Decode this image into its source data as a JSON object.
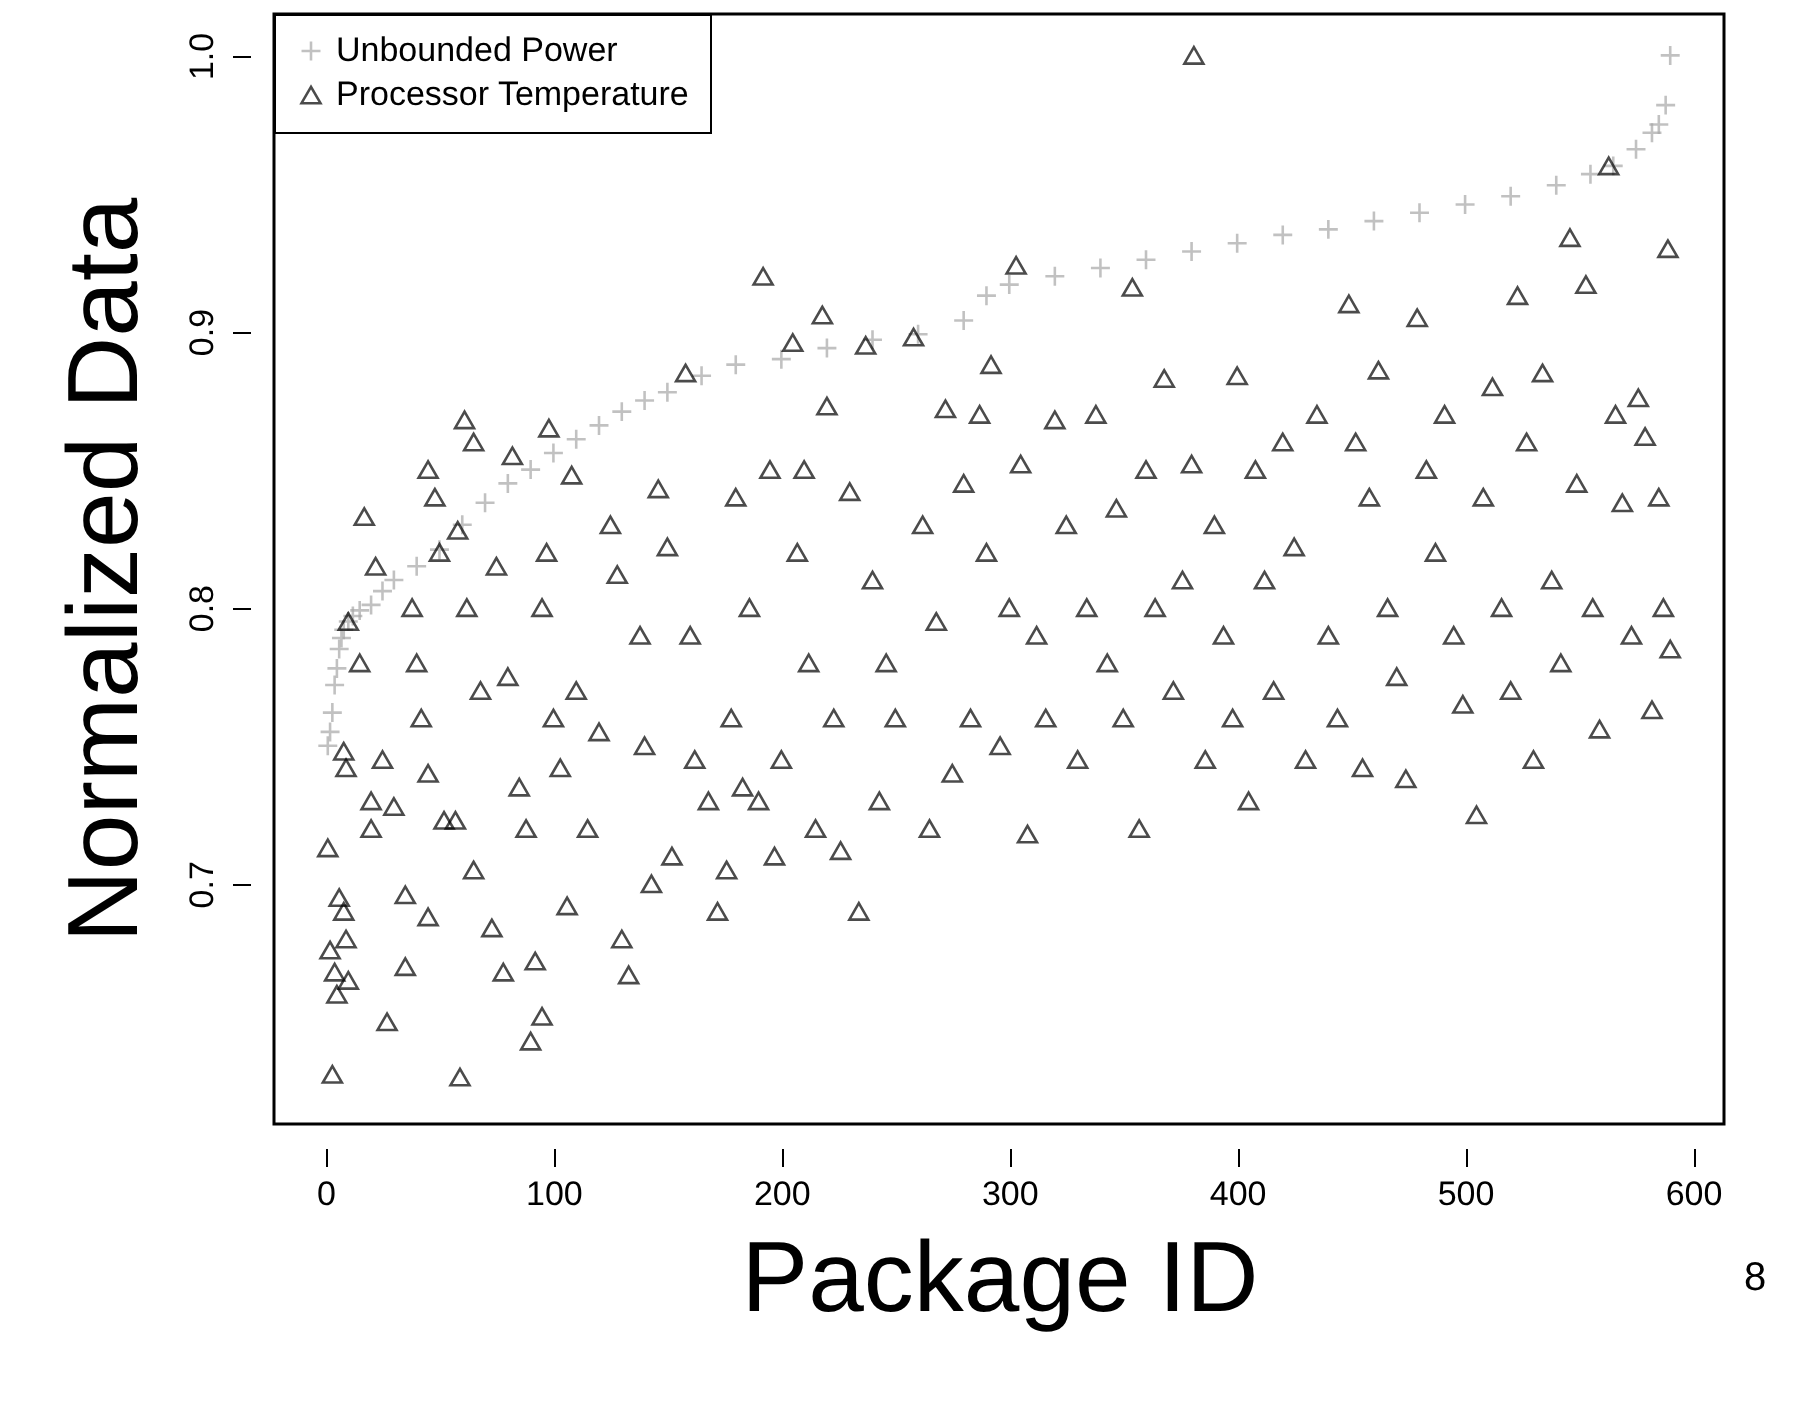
{
  "chart_data": {
    "type": "scatter",
    "xlabel": "Package ID",
    "ylabel": "Normalized Data",
    "xlim": [
      -22.6,
      613.6
    ],
    "ylim": [
      0.613,
      1.015
    ],
    "xticks": [
      0,
      100,
      200,
      300,
      400,
      500,
      600
    ],
    "yticks": [
      0.7,
      0.8,
      0.9,
      {
        "value": 1,
        "label": "1.0"
      }
    ],
    "grid": false,
    "legend": "top left",
    "annotations": [
      "8"
    ],
    "series": [
      {
        "name": "Unbounded Power",
        "color": "#a8a8a8",
        "marker": "cross",
        "x": [
          1,
          2,
          3,
          4,
          5,
          6,
          7,
          8,
          10,
          12,
          15,
          20,
          25,
          30,
          40,
          50,
          60,
          70,
          80,
          90,
          100,
          110,
          120,
          130,
          140,
          150,
          165,
          180,
          200,
          220,
          240,
          260,
          280,
          290,
          300,
          320,
          340,
          360,
          380,
          400,
          420,
          440,
          460,
          480,
          500,
          520,
          540,
          555,
          565,
          575,
          582,
          585,
          588,
          590
        ],
        "values": [
          0.75,
          0.755,
          0.762,
          0.772,
          0.778,
          0.785,
          0.789,
          0.792,
          0.795,
          0.797,
          0.799,
          0.801,
          0.806,
          0.81,
          0.815,
          0.821,
          0.83,
          0.838,
          0.845,
          0.85,
          0.856,
          0.861,
          0.866,
          0.871,
          0.875,
          0.878,
          0.884,
          0.888,
          0.89,
          0.894,
          0.897,
          0.899,
          0.904,
          0.913,
          0.917,
          0.92,
          0.923,
          0.926,
          0.929,
          0.932,
          0.935,
          0.937,
          0.94,
          0.943,
          0.946,
          0.949,
          0.953,
          0.957,
          0.96,
          0.966,
          0.972,
          0.975,
          0.982,
          1.0
        ]
      },
      {
        "name": "Processor Temperature",
        "color": "#000000",
        "marker": "triangle",
        "x": [
          3,
          1,
          2,
          4,
          5,
          6,
          8,
          9,
          10,
          8,
          9,
          10,
          17,
          22,
          20,
          20,
          15,
          25,
          27,
          30,
          35,
          35,
          38,
          40,
          42,
          45,
          45,
          45,
          48,
          50,
          52,
          59,
          61,
          65,
          58,
          62,
          68,
          57,
          65,
          73,
          78,
          75,
          82,
          80,
          85,
          88,
          90,
          92,
          95,
          97,
          98,
          100,
          95,
          103,
          106,
          108,
          110,
          115,
          120,
          125,
          128,
          130,
          133,
          138,
          140,
          143,
          146,
          150,
          152,
          158,
          160,
          162,
          168,
          172,
          176,
          178,
          180,
          183,
          186,
          190,
          192,
          195,
          197,
          200,
          205,
          207,
          210,
          212,
          215,
          218,
          220,
          223,
          226,
          230,
          234,
          237,
          240,
          243,
          246,
          250,
          258,
          262,
          265,
          268,
          272,
          275,
          280,
          283,
          287,
          290,
          292,
          296,
          300,
          303,
          305,
          308,
          312,
          316,
          320,
          325,
          330,
          334,
          338,
          343,
          347,
          350,
          354,
          357,
          360,
          364,
          368,
          372,
          376,
          381,
          380,
          386,
          390,
          394,
          398,
          400,
          405,
          408,
          412,
          416,
          420,
          425,
          430,
          435,
          440,
          444,
          449,
          452,
          455,
          458,
          462,
          466,
          470,
          474,
          479,
          483,
          487,
          491,
          495,
          499,
          505,
          508,
          512,
          516,
          520,
          523,
          527,
          530,
          534,
          538,
          542,
          546,
          549,
          553,
          556,
          559,
          563,
          566,
          569,
          573,
          576,
          579,
          582,
          585,
          587,
          589,
          590
        ],
        "values": [
          0.631,
          0.713,
          0.676,
          0.668,
          0.66,
          0.695,
          0.69,
          0.68,
          0.665,
          0.748,
          0.742,
          0.795,
          0.833,
          0.815,
          0.72,
          0.73,
          0.78,
          0.745,
          0.65,
          0.728,
          0.696,
          0.67,
          0.8,
          0.78,
          0.76,
          0.74,
          0.688,
          0.85,
          0.84,
          0.82,
          0.723,
          0.63,
          0.868,
          0.86,
          0.828,
          0.8,
          0.77,
          0.723,
          0.705,
          0.684,
          0.668,
          0.815,
          0.855,
          0.775,
          0.735,
          0.72,
          0.643,
          0.672,
          0.652,
          0.82,
          0.865,
          0.76,
          0.8,
          0.742,
          0.692,
          0.848,
          0.77,
          0.72,
          0.755,
          0.83,
          0.812,
          0.68,
          0.667,
          0.79,
          0.75,
          0.7,
          0.843,
          0.822,
          0.71,
          0.885,
          0.79,
          0.745,
          0.73,
          0.69,
          0.705,
          0.76,
          0.84,
          0.735,
          0.8,
          0.73,
          0.92,
          0.85,
          0.71,
          0.745,
          0.896,
          0.82,
          0.85,
          0.78,
          0.72,
          0.906,
          0.873,
          0.76,
          0.712,
          0.842,
          0.69,
          0.895,
          0.81,
          0.73,
          0.78,
          0.76,
          0.898,
          0.83,
          0.72,
          0.795,
          0.872,
          0.74,
          0.845,
          0.76,
          0.87,
          0.82,
          0.888,
          0.75,
          0.8,
          0.924,
          0.852,
          0.718,
          0.79,
          0.76,
          0.868,
          0.83,
          0.745,
          0.8,
          0.87,
          0.78,
          0.836,
          0.76,
          0.916,
          0.72,
          0.85,
          0.8,
          0.883,
          0.77,
          0.81,
          1.0,
          0.852,
          0.745,
          0.83,
          0.79,
          0.76,
          0.884,
          0.73,
          0.85,
          0.81,
          0.77,
          0.86,
          0.822,
          0.745,
          0.87,
          0.79,
          0.76,
          0.91,
          0.86,
          0.742,
          0.84,
          0.886,
          0.8,
          0.775,
          0.738,
          0.905,
          0.85,
          0.82,
          0.87,
          0.79,
          0.765,
          0.725,
          0.84,
          0.88,
          0.8,
          0.77,
          0.913,
          0.86,
          0.745,
          0.885,
          0.81,
          0.78,
          0.934,
          0.845,
          0.917,
          0.8,
          0.756,
          0.96,
          0.87,
          0.838,
          0.79,
          0.876,
          0.862,
          0.763,
          0.84,
          0.8,
          0.93,
          0.785
        ]
      }
    ]
  }
}
